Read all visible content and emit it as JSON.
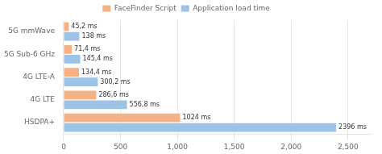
{
  "chart_data": {
    "type": "bar",
    "orientation": "horizontal",
    "categories": [
      "HSDPA+",
      "4G LTE",
      "4G LTE-A",
      "5G Sub-6 GHz",
      "5G mmWave"
    ],
    "series": [
      {
        "name": "FaceFinder Script",
        "color": "#F4B183",
        "values": [
          1024,
          286.6,
          134.4,
          71.4,
          45.2
        ],
        "value_labels": [
          "1024 ms",
          "286,6 ms",
          "134,4 ms",
          "71,4 ms",
          "45,2 ms"
        ]
      },
      {
        "name": "Application load time",
        "color": "#9DC3E6",
        "values": [
          2396,
          556.8,
          300.2,
          145.4,
          138
        ],
        "value_labels": [
          "2396 ms",
          "556,8 ms",
          "300,2 ms",
          "145,4 ms",
          "138 ms"
        ]
      }
    ],
    "xlim": [
      0,
      2700
    ],
    "xticks": [
      0,
      500,
      1000,
      1500,
      2000,
      2500
    ],
    "grid": true,
    "legend": "top",
    "data_labels": true
  }
}
